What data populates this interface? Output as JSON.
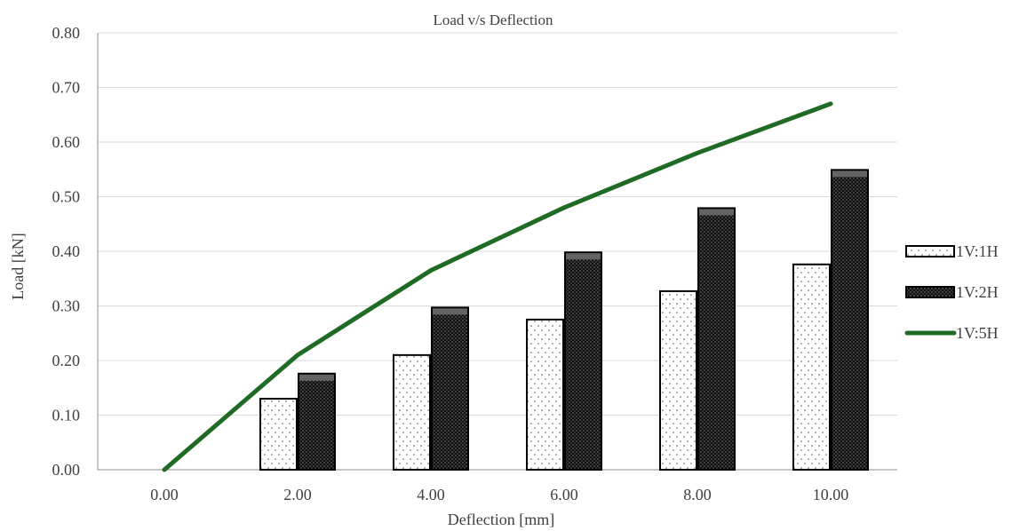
{
  "chart_data": {
    "type": "bar",
    "title": "Load v/s Deflection",
    "xlabel": "Deflection [mm]",
    "ylabel": "Load [kN]",
    "categories": [
      "0.00",
      "2.00",
      "4.00",
      "6.00",
      "8.00",
      "10.00"
    ],
    "ylim": [
      0,
      0.8
    ],
    "yticks": [
      "0.00",
      "0.10",
      "0.20",
      "0.30",
      "0.40",
      "0.50",
      "0.60",
      "0.70",
      "0.80"
    ],
    "grid": true,
    "legend_position": "right",
    "series": [
      {
        "name": "1V:1H",
        "kind": "bar",
        "pattern": "light-dotted",
        "values": [
          0,
          0.13,
          0.21,
          0.275,
          0.327,
          0.376
        ]
      },
      {
        "name": "1V:2H",
        "kind": "bar",
        "pattern": "dark-dotted",
        "values": [
          0,
          0.176,
          0.297,
          0.398,
          0.479,
          0.549
        ]
      },
      {
        "name": "1V:5H",
        "kind": "line",
        "color": "#1f6b25",
        "values": [
          0,
          0.21,
          0.365,
          0.48,
          0.58,
          0.67
        ]
      }
    ]
  }
}
